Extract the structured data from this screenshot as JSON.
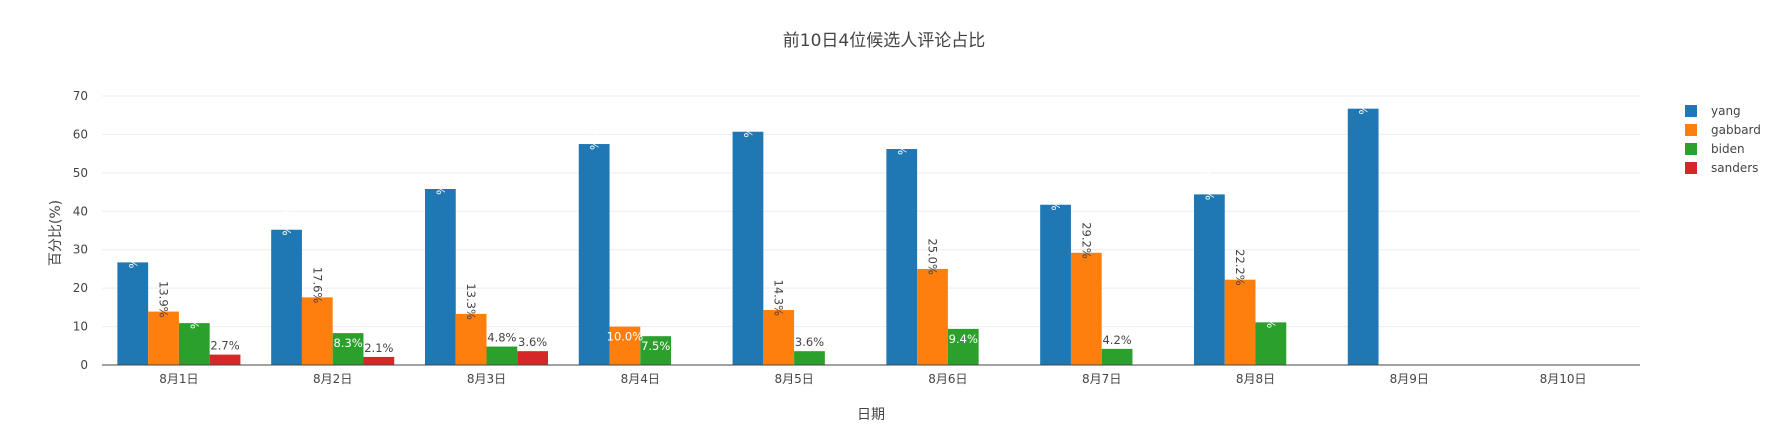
{
  "chart_data": {
    "type": "bar",
    "title": "前10日4位候选人评论占比",
    "xlabel": "日期",
    "ylabel": "百分比(%)",
    "ylim": [
      0,
      70
    ],
    "yticks": [
      0,
      10,
      20,
      30,
      40,
      50,
      60,
      70
    ],
    "grid": true,
    "legend_position": "right",
    "categories": [
      "8月1日",
      "8月2日",
      "8月3日",
      "8月4日",
      "8月5日",
      "8月6日",
      "8月7日",
      "8月8日",
      "8月9日",
      "8月10日"
    ],
    "series": [
      {
        "name": "yang",
        "color": "#1f77b4",
        "values": [
          26.7,
          35.2,
          45.8,
          57.5,
          60.7,
          56.2,
          41.7,
          44.4,
          66.7,
          null
        ],
        "labels": [
          "26.7%",
          "35.2%",
          "45.8%",
          "57.5%",
          "60.7%",
          "56.2%",
          "41.7%",
          "44.4%",
          "66.7%",
          ""
        ]
      },
      {
        "name": "gabbard",
        "color": "#ff7f0e",
        "values": [
          13.9,
          17.6,
          13.3,
          10.0,
          14.3,
          25.0,
          29.2,
          22.2,
          null,
          null
        ],
        "labels": [
          "13.9%",
          "17.6%",
          "13.3%",
          "10.0%",
          "14.3%",
          "25.0%",
          "29.2%",
          "22.2%",
          "",
          ""
        ]
      },
      {
        "name": "biden",
        "color": "#2ca02c",
        "values": [
          10.9,
          8.3,
          4.8,
          7.5,
          3.6,
          9.4,
          4.2,
          11.1,
          null,
          null
        ],
        "labels": [
          "10.9%",
          "8.3%",
          "4.8%",
          "7.5%",
          "3.6%",
          "9.4%",
          "4.2%",
          "11.1%",
          "",
          ""
        ]
      },
      {
        "name": "sanders",
        "color": "#d62728",
        "values": [
          2.7,
          2.1,
          3.6,
          null,
          null,
          null,
          null,
          null,
          null,
          null
        ],
        "labels": [
          "2.7%",
          "2.1%",
          "3.6%",
          "",
          "",
          "",
          "",
          "",
          "",
          ""
        ]
      }
    ]
  }
}
